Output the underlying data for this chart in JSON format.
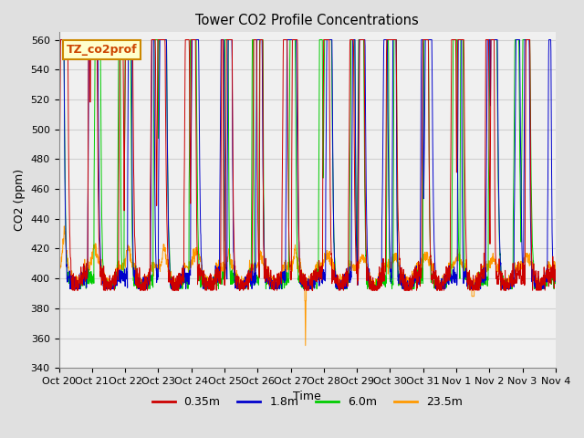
{
  "title": "Tower CO2 Profile Concentrations",
  "xlabel": "Time",
  "ylabel": "CO2 (ppm)",
  "ylim": [
    340,
    565
  ],
  "yticks": [
    340,
    360,
    380,
    400,
    420,
    440,
    460,
    480,
    500,
    520,
    540,
    560
  ],
  "line_colors": [
    "#cc0000",
    "#0000cc",
    "#00cc00",
    "#ff9900"
  ],
  "line_labels": [
    "0.35m",
    "1.8m",
    "6.0m",
    "23.5m"
  ],
  "legend_label": "TZ_co2prof",
  "legend_box_color": "#ffffcc",
  "legend_box_edge": "#cc8800",
  "n_days": 15,
  "n_points_per_day": 144,
  "xtick_labels": [
    "Oct 20",
    "Oct 21",
    "Oct 22",
    "Oct 23",
    "Oct 24",
    "Oct 25",
    "Oct 26",
    "Oct 27",
    "Oct 28",
    "Oct 29",
    "Oct 30",
    "Oct 31",
    "Nov 1",
    "Nov 2",
    "Nov 3",
    "Nov 4"
  ],
  "grid_color": "#d0d0d0",
  "plot_bg_color": "#f0f0f0",
  "fig_bg_color": "#e0e0e0"
}
